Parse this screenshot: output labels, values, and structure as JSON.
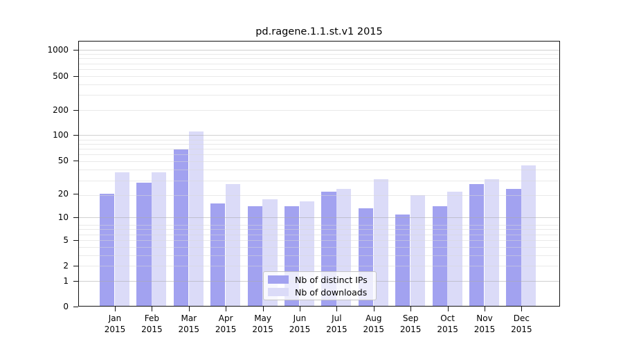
{
  "title": "pd.ragene.1.1.st.v1 2015",
  "chart_data": {
    "type": "bar",
    "title": "pd.ragene.1.1.st.v1 2015",
    "categories": [
      "Jan 2015",
      "Feb 2015",
      "Mar 2015",
      "Apr 2015",
      "May 2015",
      "Jun 2015",
      "Jul 2015",
      "Aug 2015",
      "Sep 2015",
      "Oct 2015",
      "Nov 2015",
      "Dec 2015"
    ],
    "month_labels": [
      "Jan",
      "Feb",
      "Mar",
      "Apr",
      "May",
      "Jun",
      "Jul",
      "Aug",
      "Sep",
      "Oct",
      "Nov",
      "Dec"
    ],
    "year_label": "2015",
    "series": [
      {
        "name": "Nb of distinct IPs",
        "color": "#a2a2f0",
        "values": [
          20,
          27,
          68,
          15,
          14,
          14,
          21,
          13,
          11,
          14,
          26,
          23
        ]
      },
      {
        "name": "Nb of downloads",
        "color": "#dbdbf8",
        "values": [
          36,
          36,
          110,
          26,
          17,
          16,
          23,
          30,
          19,
          21,
          30,
          44
        ]
      }
    ],
    "y_ticks": [
      0,
      1,
      2,
      5,
      10,
      20,
      50,
      100,
      200,
      500,
      1000
    ],
    "y_scale": "log10(value+1)",
    "ylim": [
      0,
      1070
    ],
    "xlabel": "",
    "ylabel": "",
    "grid": "horizontal major and minor gridlines drawn over bars",
    "legend_position": "lower center"
  },
  "colors": {
    "background": "#ffffff",
    "bar_distinct_ips": "#a2a2f0",
    "bar_downloads": "#dbdbf8",
    "grid_major": "#cfcfcf",
    "grid_minor": "#ebebeb",
    "axis": "#111111",
    "text": "#000000",
    "legend_border": "#c4c4c4"
  }
}
